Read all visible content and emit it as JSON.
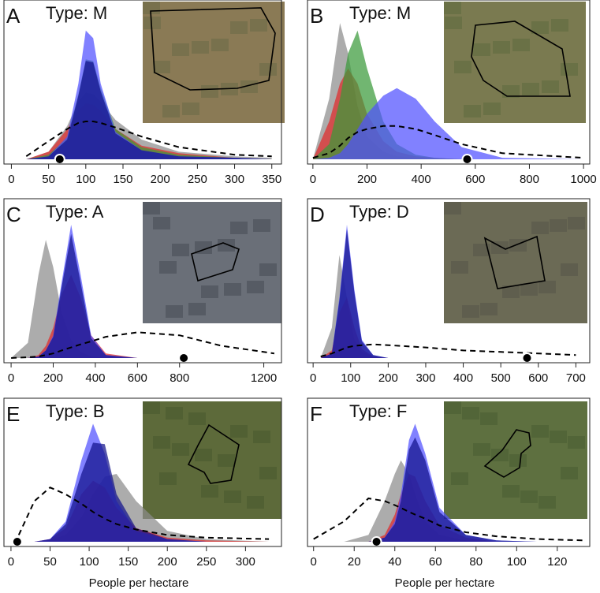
{
  "chart_data": [
    {
      "type": "density",
      "label": "A",
      "title": "Type: M",
      "xlim": [
        -10,
        363
      ],
      "xticks": [
        0,
        50,
        100,
        150,
        200,
        250,
        300,
        350
      ],
      "marker_x": 65,
      "x": [
        20,
        50,
        75,
        90,
        100,
        110,
        120,
        140,
        175,
        225,
        300,
        350
      ],
      "series": [
        {
          "color": "#8c8c8c",
          "values": [
            0,
            0.05,
            0.22,
            0.38,
            0.44,
            0.43,
            0.38,
            0.26,
            0.13,
            0.05,
            0.02,
            0.01
          ]
        },
        {
          "color": "#e02a2a",
          "values": [
            0,
            0.05,
            0.2,
            0.32,
            0.37,
            0.36,
            0.32,
            0.2,
            0.09,
            0.04,
            0.01,
            0
          ]
        },
        {
          "color": "#3a9a3a",
          "values": [
            0,
            0.03,
            0.14,
            0.43,
            0.66,
            0.65,
            0.47,
            0.2,
            0.08,
            0.03,
            0.01,
            0
          ]
        },
        {
          "color": "#5050ff",
          "values": [
            0,
            0.02,
            0.15,
            0.5,
            0.85,
            0.8,
            0.5,
            0.18,
            0.06,
            0.02,
            0.01,
            0
          ]
        },
        {
          "color": "#12128c",
          "values": [
            0,
            0.02,
            0.13,
            0.42,
            0.65,
            0.64,
            0.45,
            0.17,
            0.06,
            0.02,
            0.01,
            0
          ]
        },
        {
          "color": "#000000",
          "dashed": true,
          "values": [
            0.02,
            0.12,
            0.2,
            0.24,
            0.25,
            0.25,
            0.24,
            0.21,
            0.15,
            0.08,
            0.03,
            0.02
          ]
        }
      ]
    },
    {
      "type": "density",
      "label": "B",
      "title": "Type: M",
      "xlim": [
        -20,
        1023
      ],
      "xticks": [
        0,
        200,
        400,
        600,
        800,
        1000
      ],
      "marker_x": 570,
      "x": [
        0,
        60,
        100,
        130,
        165,
        200,
        260,
        310,
        380,
        450,
        550,
        700,
        1000
      ],
      "series": [
        {
          "color": "#8c8c8c",
          "values": [
            0,
            0.4,
            0.9,
            0.7,
            0.35,
            0.15,
            0.05,
            0.02,
            0.01,
            0,
            0,
            0,
            0
          ]
        },
        {
          "color": "#e02a2a",
          "values": [
            0,
            0.25,
            0.5,
            0.6,
            0.5,
            0.3,
            0.12,
            0.05,
            0.02,
            0.01,
            0,
            0,
            0
          ]
        },
        {
          "color": "#3a9a3a",
          "values": [
            0,
            0.1,
            0.4,
            0.7,
            0.85,
            0.6,
            0.25,
            0.1,
            0.03,
            0.01,
            0,
            0,
            0
          ]
        },
        {
          "color": "#5050ff",
          "values": [
            0,
            0.01,
            0.04,
            0.1,
            0.2,
            0.3,
            0.42,
            0.47,
            0.4,
            0.25,
            0.08,
            0.01,
            0
          ]
        },
        {
          "color": "#000000",
          "dashed": true,
          "values": [
            0.01,
            0.04,
            0.09,
            0.14,
            0.18,
            0.2,
            0.22,
            0.22,
            0.2,
            0.16,
            0.1,
            0.04,
            0.01
          ]
        }
      ]
    },
    {
      "type": "density",
      "label": "C",
      "title": "Type: A",
      "xlim": [
        -34,
        1284
      ],
      "xticks": [
        0,
        200,
        400,
        600,
        800,
        1200
      ],
      "marker_x": 820,
      "x": [
        0,
        80,
        130,
        165,
        200,
        240,
        285,
        330,
        380,
        450,
        600,
        800,
        1000,
        1250
      ],
      "series": [
        {
          "color": "#8c8c8c",
          "values": [
            0,
            0.1,
            0.55,
            0.78,
            0.6,
            0.3,
            0.12,
            0.04,
            0.01,
            0,
            0,
            0,
            0,
            0
          ]
        },
        {
          "color": "#e02a2a",
          "values": [
            0,
            0,
            0.02,
            0.08,
            0.2,
            0.42,
            0.55,
            0.4,
            0.15,
            0.03,
            0,
            0,
            0,
            0
          ]
        },
        {
          "color": "#5050ff",
          "values": [
            0,
            0,
            0.01,
            0.05,
            0.15,
            0.5,
            0.88,
            0.55,
            0.15,
            0.02,
            0,
            0,
            0,
            0
          ]
        },
        {
          "color": "#12128c",
          "values": [
            0,
            0,
            0.01,
            0.05,
            0.14,
            0.47,
            0.82,
            0.5,
            0.13,
            0.02,
            0,
            0,
            0,
            0
          ]
        },
        {
          "color": "#000000",
          "dashed": true,
          "values": [
            0,
            0.005,
            0.01,
            0.02,
            0.03,
            0.05,
            0.07,
            0.09,
            0.11,
            0.14,
            0.17,
            0.15,
            0.08,
            0.03
          ]
        }
      ]
    },
    {
      "type": "density",
      "label": "D",
      "title": "Type: D",
      "xlim": [
        -15,
        737
      ],
      "xticks": [
        0,
        100,
        200,
        300,
        400,
        500,
        600,
        700
      ],
      "marker_x": 570,
      "x": [
        20,
        50,
        70,
        90,
        110,
        130,
        160,
        200,
        300,
        400,
        500,
        600,
        700
      ],
      "series": [
        {
          "color": "#8c8c8c",
          "values": [
            0,
            0.2,
            0.68,
            0.4,
            0.12,
            0.04,
            0.01,
            0,
            0,
            0,
            0,
            0,
            0
          ]
        },
        {
          "color": "#e02a2a",
          "values": [
            0,
            0.05,
            0.3,
            0.4,
            0.2,
            0.06,
            0.01,
            0,
            0,
            0,
            0,
            0,
            0
          ]
        },
        {
          "color": "#5050ff",
          "values": [
            0,
            0.03,
            0.4,
            0.88,
            0.45,
            0.12,
            0.02,
            0,
            0,
            0,
            0,
            0,
            0
          ]
        },
        {
          "color": "#12128c",
          "values": [
            0,
            0.03,
            0.38,
            0.85,
            0.43,
            0.11,
            0.02,
            0,
            0,
            0,
            0,
            0,
            0
          ]
        },
        {
          "color": "#000000",
          "dashed": true,
          "values": [
            0.01,
            0.03,
            0.05,
            0.07,
            0.08,
            0.085,
            0.09,
            0.085,
            0.07,
            0.05,
            0.04,
            0.03,
            0.02
          ]
        }
      ]
    },
    {
      "type": "density",
      "label": "E",
      "title": "Type: B",
      "xlabel": "People per hectare",
      "xlim": [
        -9,
        346
      ],
      "xticks": [
        0,
        50,
        100,
        150,
        200,
        250,
        300
      ],
      "marker_x": 8,
      "x": [
        10,
        30,
        50,
        70,
        90,
        105,
        120,
        135,
        160,
        200,
        250,
        330
      ],
      "series": [
        {
          "color": "#8c8c8c",
          "values": [
            0,
            0,
            0.01,
            0.05,
            0.18,
            0.35,
            0.48,
            0.5,
            0.3,
            0.08,
            0.02,
            0
          ]
        },
        {
          "color": "#e02a2a",
          "values": [
            0,
            0,
            0.02,
            0.1,
            0.35,
            0.45,
            0.4,
            0.25,
            0.1,
            0.03,
            0.01,
            0
          ]
        },
        {
          "color": "#5050ff",
          "values": [
            0,
            0,
            0.02,
            0.15,
            0.6,
            0.87,
            0.65,
            0.3,
            0.08,
            0.02,
            0,
            0
          ]
        },
        {
          "color": "#12128c",
          "values": [
            0,
            0,
            0.02,
            0.13,
            0.5,
            0.73,
            0.72,
            0.35,
            0.1,
            0.02,
            0,
            0
          ]
        },
        {
          "color": "#000000",
          "dashed": true,
          "values": [
            0.05,
            0.3,
            0.4,
            0.35,
            0.28,
            0.22,
            0.17,
            0.13,
            0.09,
            0.05,
            0.03,
            0.02
          ]
        }
      ]
    },
    {
      "type": "density",
      "label": "F",
      "title": "Type: F",
      "xlabel": "People per hectare",
      "xlim": [
        -3,
        136
      ],
      "xticks": [
        0,
        20,
        40,
        60,
        80,
        100,
        120
      ],
      "marker_x": 31,
      "x": [
        0,
        15,
        27,
        35,
        40,
        43,
        47,
        50,
        55,
        62,
        75,
        90,
        110,
        133
      ],
      "series": [
        {
          "color": "#8c8c8c",
          "values": [
            0,
            0,
            0.05,
            0.3,
            0.5,
            0.6,
            0.5,
            0.35,
            0.15,
            0.05,
            0.01,
            0,
            0,
            0
          ]
        },
        {
          "color": "#e02a2a",
          "values": [
            0,
            0,
            0,
            0.05,
            0.2,
            0.35,
            0.5,
            0.48,
            0.3,
            0.12,
            0.03,
            0,
            0,
            0
          ]
        },
        {
          "color": "#5050ff",
          "values": [
            0,
            0,
            0,
            0.03,
            0.15,
            0.35,
            0.75,
            0.87,
            0.65,
            0.25,
            0.05,
            0.01,
            0,
            0
          ]
        },
        {
          "color": "#12128c",
          "values": [
            0,
            0,
            0,
            0.03,
            0.13,
            0.3,
            0.68,
            0.77,
            0.6,
            0.22,
            0.05,
            0.01,
            0,
            0
          ]
        },
        {
          "color": "#000000",
          "dashed": true,
          "values": [
            0.02,
            0.15,
            0.32,
            0.3,
            0.27,
            0.25,
            0.22,
            0.2,
            0.17,
            0.12,
            0.07,
            0.04,
            0.02,
            0.01
          ]
        }
      ]
    }
  ]
}
